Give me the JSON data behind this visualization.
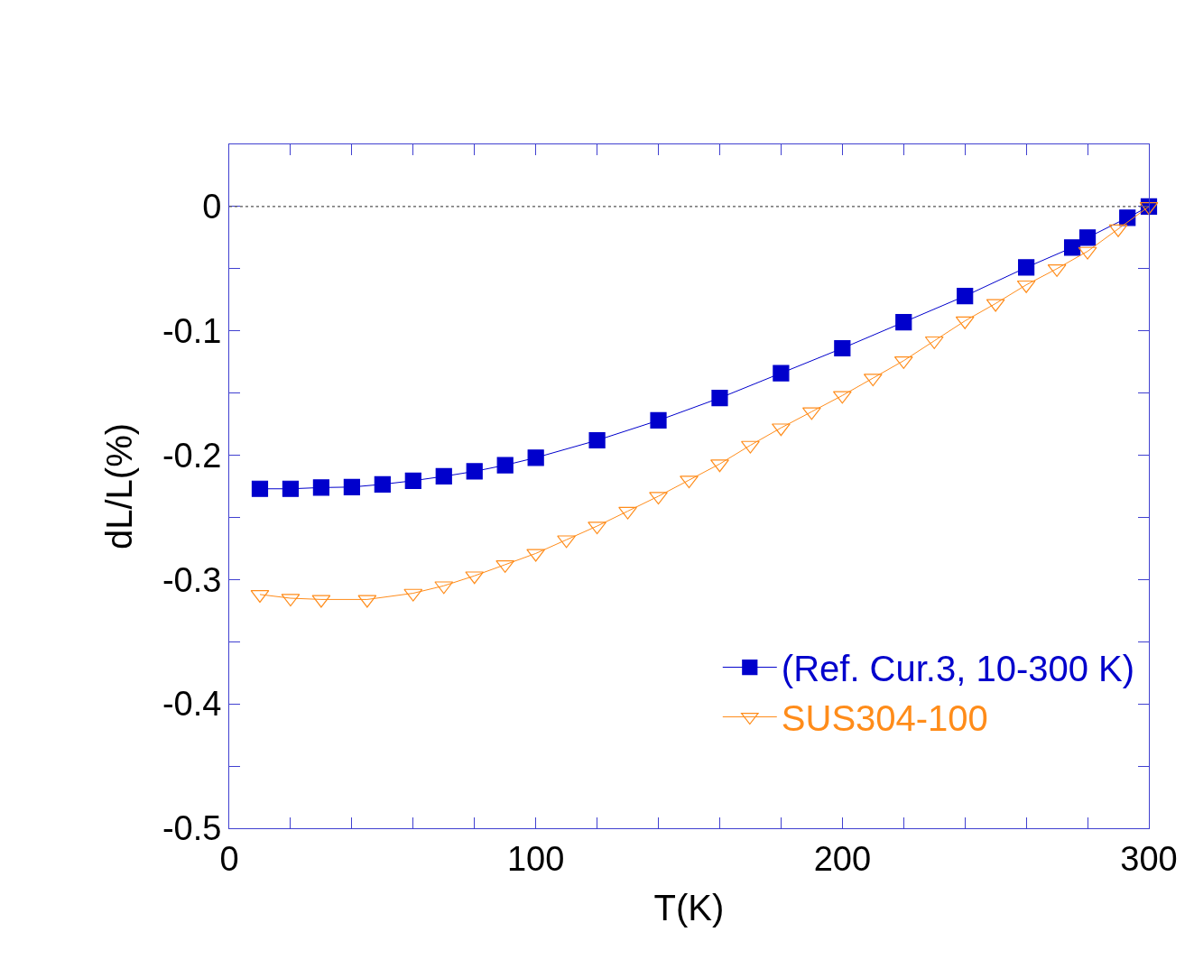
{
  "chart_data": {
    "type": "line",
    "xlabel": "T(K)",
    "ylabel": "dL/L(%)",
    "xlim": [
      0,
      300
    ],
    "ylim": [
      -0.5,
      0.05
    ],
    "xticks": [
      0,
      {
        "value": 20,
        "label": null
      },
      {
        "value": 40,
        "label": null
      },
      {
        "value": 60,
        "label": null
      },
      {
        "value": 80,
        "label": null
      },
      100,
      {
        "value": 120,
        "label": null
      },
      {
        "value": 140,
        "label": null
      },
      {
        "value": 160,
        "label": null
      },
      {
        "value": 180,
        "label": null
      },
      200,
      {
        "value": 220,
        "label": null
      },
      {
        "value": 240,
        "label": null
      },
      {
        "value": 260,
        "label": null
      },
      {
        "value": 280,
        "label": null
      },
      300
    ],
    "yticks": [
      {
        "value": -0.5,
        "label": "-0.5"
      },
      {
        "value": -0.45,
        "label": null
      },
      {
        "value": -0.4,
        "label": "-0.4"
      },
      {
        "value": -0.35,
        "label": null
      },
      {
        "value": -0.3,
        "label": "-0.3"
      },
      {
        "value": -0.25,
        "label": null
      },
      {
        "value": -0.2,
        "label": "-0.2"
      },
      {
        "value": -0.15,
        "label": null
      },
      {
        "value": -0.1,
        "label": "-0.1"
      },
      {
        "value": -0.05,
        "label": null
      },
      {
        "value": 0,
        "label": "0"
      }
    ],
    "grid": false,
    "legend": "bottom right",
    "line_style": "solid",
    "ref_lines": [
      {
        "axis": "y",
        "value": 0,
        "line_style": "dotted",
        "color": "#555555"
      }
    ],
    "series": [
      {
        "name": "(Ref. Cur.3, 10-300 K)",
        "color": "#0000cc",
        "marker": "square",
        "x": [
          10,
          20,
          30,
          40,
          50,
          60,
          70,
          80,
          90,
          100,
          120,
          140,
          160,
          180,
          200,
          220,
          240,
          260,
          275,
          280,
          293,
          300
        ],
        "values": [
          -0.227,
          -0.227,
          -0.226,
          -0.2256,
          -0.2234,
          -0.2205,
          -0.217,
          -0.213,
          -0.208,
          -0.202,
          -0.188,
          -0.172,
          -0.154,
          -0.134,
          -0.114,
          -0.093,
          -0.072,
          -0.049,
          -0.033,
          -0.025,
          -0.009,
          0
        ]
      },
      {
        "name": "SUS304-100",
        "color": "#ff8c1a",
        "marker": "triangle",
        "x": [
          10,
          20,
          30,
          45,
          60,
          70,
          80,
          90,
          100,
          110,
          120,
          130,
          140,
          150,
          160,
          170,
          180,
          190,
          200,
          210,
          220,
          230,
          240,
          250,
          260,
          270,
          280,
          290,
          300
        ],
        "values": [
          -0.312,
          -0.315,
          -0.316,
          -0.316,
          -0.311,
          -0.305,
          -0.297,
          -0.288,
          -0.279,
          -0.268,
          -0.257,
          -0.245,
          -0.233,
          -0.22,
          -0.207,
          -0.192,
          -0.178,
          -0.165,
          -0.152,
          -0.138,
          -0.124,
          -0.108,
          -0.092,
          -0.078,
          -0.063,
          -0.05,
          -0.036,
          -0.018,
          0
        ]
      }
    ]
  }
}
